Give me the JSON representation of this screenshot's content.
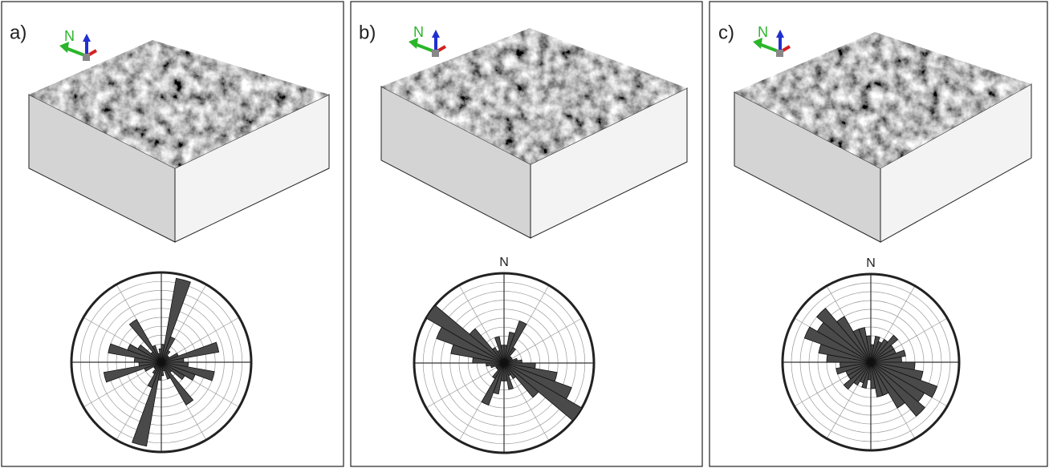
{
  "panels": [
    {
      "label": "a)",
      "axis_north": "N",
      "rose": {
        "type": "rose",
        "rlim": [
          0,
          10
        ],
        "rticks": [
          1,
          2,
          3,
          4,
          5,
          6,
          7,
          8,
          9
        ],
        "values": [
          2,
          9.5,
          3,
          1.5,
          1,
          1,
          2,
          6.5,
          2.5,
          3,
          6,
          4,
          3,
          1.5,
          5.5,
          2,
          1,
          1.5
        ]
      }
    },
    {
      "label": "b)",
      "axis_north": "N",
      "rose_north": "N",
      "rose": {
        "type": "rose",
        "rlim": [
          0,
          10
        ],
        "rticks": [
          1,
          2,
          3,
          4,
          5,
          6,
          7,
          8,
          9
        ],
        "values": [
          2,
          3.5,
          5,
          2,
          1,
          1,
          1,
          1.5,
          2,
          3.5,
          6,
          8,
          10,
          5,
          2,
          1.5,
          3,
          2
        ]
      }
    },
    {
      "label": "c)",
      "axis_north": "N",
      "rose_north": "N",
      "rose": {
        "type": "rose",
        "rlim": [
          0,
          10
        ],
        "rticks": [
          1,
          2,
          3,
          4,
          5,
          6,
          7,
          8,
          9
        ],
        "values": [
          2,
          3,
          2.5,
          3,
          4,
          3,
          3,
          4,
          3.5,
          5,
          6,
          8,
          7,
          8,
          6,
          4,
          4,
          3
        ]
      }
    }
  ]
}
